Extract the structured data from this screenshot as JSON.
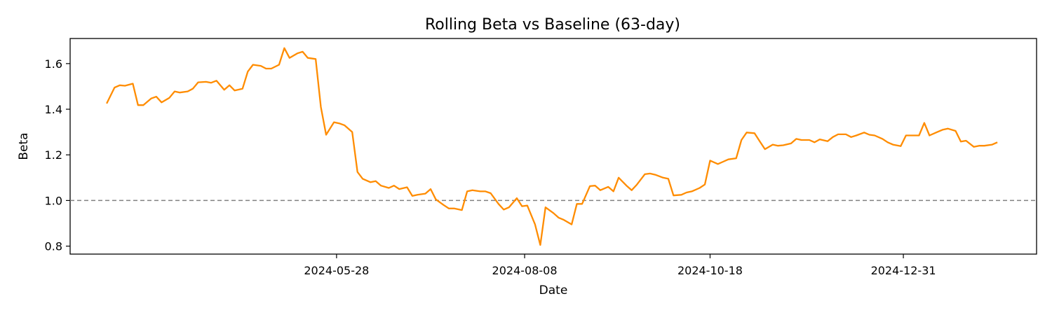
{
  "chart_data": {
    "type": "line",
    "title": "Rolling Beta vs Baseline (63-day)",
    "xlabel": "Date",
    "ylabel": "Beta",
    "x_start": "2024-03-01",
    "x_end": "2025-02-05",
    "xlim": [
      "2024-02-16",
      "2025-02-20"
    ],
    "ylim": [
      0.765,
      1.71
    ],
    "x_ticks": [
      "2024-05-28",
      "2024-08-08",
      "2024-10-18",
      "2024-12-31"
    ],
    "y_ticks": [
      0.8,
      1.0,
      1.2,
      1.4,
      1.6
    ],
    "reference_line": {
      "y": 1.0,
      "style": "dashed",
      "color": "#808080"
    },
    "grid": false,
    "series": [
      {
        "color": "#FF8C00",
        "points": [
          [
            "2024-03-01",
            1.425
          ],
          [
            "2024-03-04",
            1.495
          ],
          [
            "2024-03-06",
            1.505
          ],
          [
            "2024-03-08",
            1.503
          ],
          [
            "2024-03-11",
            1.512
          ],
          [
            "2024-03-13",
            1.418
          ],
          [
            "2024-03-15",
            1.418
          ],
          [
            "2024-03-18",
            1.447
          ],
          [
            "2024-03-20",
            1.455
          ],
          [
            "2024-03-22",
            1.43
          ],
          [
            "2024-03-25",
            1.45
          ],
          [
            "2024-03-27",
            1.478
          ],
          [
            "2024-03-29",
            1.473
          ],
          [
            "2024-04-01",
            1.478
          ],
          [
            "2024-04-03",
            1.49
          ],
          [
            "2024-04-05",
            1.518
          ],
          [
            "2024-04-08",
            1.52
          ],
          [
            "2024-04-10",
            1.516
          ],
          [
            "2024-04-12",
            1.525
          ],
          [
            "2024-04-15",
            1.485
          ],
          [
            "2024-04-17",
            1.505
          ],
          [
            "2024-04-19",
            1.482
          ],
          [
            "2024-04-22",
            1.49
          ],
          [
            "2024-04-24",
            1.565
          ],
          [
            "2024-04-26",
            1.595
          ],
          [
            "2024-04-29",
            1.59
          ],
          [
            "2024-05-01",
            1.578
          ],
          [
            "2024-05-03",
            1.578
          ],
          [
            "2024-05-06",
            1.595
          ],
          [
            "2024-05-08",
            1.668
          ],
          [
            "2024-05-10",
            1.625
          ],
          [
            "2024-05-13",
            1.645
          ],
          [
            "2024-05-15",
            1.652
          ],
          [
            "2024-05-17",
            1.625
          ],
          [
            "2024-05-20",
            1.62
          ],
          [
            "2024-05-22",
            1.41
          ],
          [
            "2024-05-24",
            1.288
          ],
          [
            "2024-05-27",
            1.343
          ],
          [
            "2024-05-29",
            1.338
          ],
          [
            "2024-05-31",
            1.33
          ],
          [
            "2024-06-03",
            1.3
          ],
          [
            "2024-06-05",
            1.125
          ],
          [
            "2024-06-07",
            1.095
          ],
          [
            "2024-06-10",
            1.08
          ],
          [
            "2024-06-12",
            1.085
          ],
          [
            "2024-06-14",
            1.065
          ],
          [
            "2024-06-17",
            1.055
          ],
          [
            "2024-06-19",
            1.065
          ],
          [
            "2024-06-21",
            1.05
          ],
          [
            "2024-06-24",
            1.058
          ],
          [
            "2024-06-26",
            1.02
          ],
          [
            "2024-06-28",
            1.025
          ],
          [
            "2024-07-01",
            1.03
          ],
          [
            "2024-07-03",
            1.05
          ],
          [
            "2024-07-05",
            1.005
          ],
          [
            "2024-07-08",
            0.98
          ],
          [
            "2024-07-10",
            0.965
          ],
          [
            "2024-07-12",
            0.965
          ],
          [
            "2024-07-15",
            0.958
          ],
          [
            "2024-07-17",
            1.04
          ],
          [
            "2024-07-19",
            1.045
          ],
          [
            "2024-07-22",
            1.04
          ],
          [
            "2024-07-24",
            1.04
          ],
          [
            "2024-07-26",
            1.032
          ],
          [
            "2024-07-29",
            0.985
          ],
          [
            "2024-07-31",
            0.96
          ],
          [
            "2024-08-02",
            0.97
          ],
          [
            "2024-08-05",
            1.01
          ],
          [
            "2024-08-07",
            0.975
          ],
          [
            "2024-08-09",
            0.978
          ],
          [
            "2024-08-12",
            0.895
          ],
          [
            "2024-08-14",
            0.805
          ],
          [
            "2024-08-16",
            0.97
          ],
          [
            "2024-08-19",
            0.945
          ],
          [
            "2024-08-21",
            0.925
          ],
          [
            "2024-08-23",
            0.915
          ],
          [
            "2024-08-26",
            0.895
          ],
          [
            "2024-08-28",
            0.985
          ],
          [
            "2024-08-30",
            0.985
          ],
          [
            "2024-09-02",
            1.063
          ],
          [
            "2024-09-04",
            1.065
          ],
          [
            "2024-09-06",
            1.045
          ],
          [
            "2024-09-09",
            1.06
          ],
          [
            "2024-09-11",
            1.04
          ],
          [
            "2024-09-13",
            1.1
          ],
          [
            "2024-09-16",
            1.065
          ],
          [
            "2024-09-18",
            1.045
          ],
          [
            "2024-09-20",
            1.07
          ],
          [
            "2024-09-23",
            1.115
          ],
          [
            "2024-09-25",
            1.118
          ],
          [
            "2024-09-27",
            1.113
          ],
          [
            "2024-09-30",
            1.1
          ],
          [
            "2024-10-02",
            1.095
          ],
          [
            "2024-10-04",
            1.022
          ],
          [
            "2024-10-07",
            1.025
          ],
          [
            "2024-10-09",
            1.035
          ],
          [
            "2024-10-11",
            1.04
          ],
          [
            "2024-10-14",
            1.055
          ],
          [
            "2024-10-16",
            1.07
          ],
          [
            "2024-10-18",
            1.175
          ],
          [
            "2024-10-21",
            1.16
          ],
          [
            "2024-10-23",
            1.17
          ],
          [
            "2024-10-25",
            1.18
          ],
          [
            "2024-10-28",
            1.185
          ],
          [
            "2024-10-30",
            1.265
          ],
          [
            "2024-11-01",
            1.298
          ],
          [
            "2024-11-04",
            1.295
          ],
          [
            "2024-11-06",
            1.26
          ],
          [
            "2024-11-08",
            1.225
          ],
          [
            "2024-11-11",
            1.245
          ],
          [
            "2024-11-13",
            1.24
          ],
          [
            "2024-11-15",
            1.242
          ],
          [
            "2024-11-18",
            1.25
          ],
          [
            "2024-11-20",
            1.27
          ],
          [
            "2024-11-22",
            1.265
          ],
          [
            "2024-11-25",
            1.265
          ],
          [
            "2024-11-27",
            1.255
          ],
          [
            "2024-11-29",
            1.268
          ],
          [
            "2024-12-02",
            1.26
          ],
          [
            "2024-12-04",
            1.278
          ],
          [
            "2024-12-06",
            1.29
          ],
          [
            "2024-12-09",
            1.29
          ],
          [
            "2024-12-11",
            1.278
          ],
          [
            "2024-12-13",
            1.285
          ],
          [
            "2024-12-16",
            1.298
          ],
          [
            "2024-12-18",
            1.288
          ],
          [
            "2024-12-20",
            1.285
          ],
          [
            "2024-12-23",
            1.27
          ],
          [
            "2024-12-25",
            1.255
          ],
          [
            "2024-12-27",
            1.245
          ],
          [
            "2024-12-30",
            1.238
          ],
          [
            "2025-01-01",
            1.285
          ],
          [
            "2025-01-03",
            1.285
          ],
          [
            "2025-01-06",
            1.285
          ],
          [
            "2025-01-08",
            1.34
          ],
          [
            "2025-01-10",
            1.285
          ],
          [
            "2025-01-13",
            1.3
          ],
          [
            "2025-01-15",
            1.31
          ],
          [
            "2025-01-17",
            1.315
          ],
          [
            "2025-01-20",
            1.305
          ],
          [
            "2025-01-22",
            1.258
          ],
          [
            "2025-01-24",
            1.262
          ],
          [
            "2025-01-27",
            1.235
          ],
          [
            "2025-01-29",
            1.24
          ],
          [
            "2025-01-31",
            1.24
          ],
          [
            "2025-02-03",
            1.245
          ],
          [
            "2025-02-05",
            1.255
          ]
        ]
      }
    ]
  }
}
